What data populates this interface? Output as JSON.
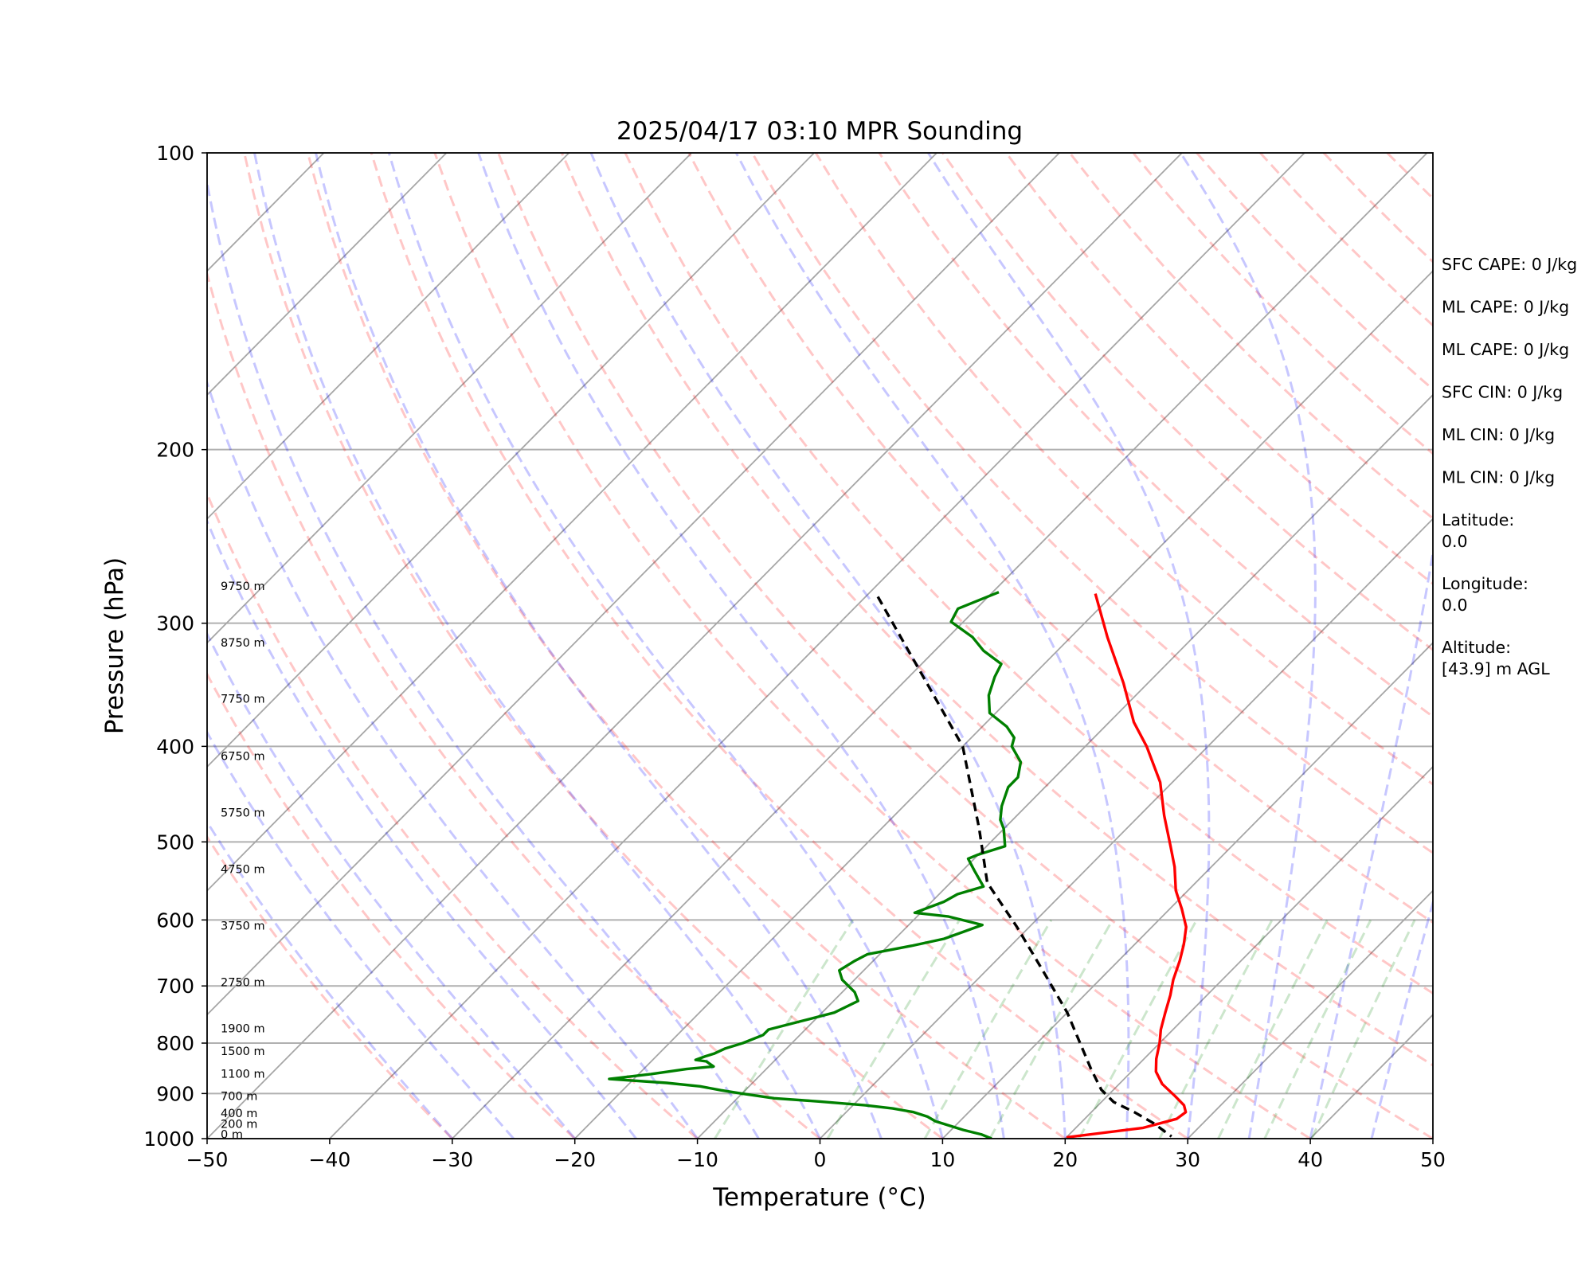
{
  "chart_data": {
    "type": "line",
    "title": "2025/04/17 03:10 MPR Sounding",
    "xlabel": "Temperature (°C)",
    "ylabel": "Pressure (hPa)",
    "xlim": [
      -50,
      50
    ],
    "ylim": [
      1000,
      100
    ],
    "y_scale": "log",
    "grid": true,
    "x_ticks": [
      "−50",
      "−40",
      "−30",
      "−20",
      "−10",
      "0",
      "10",
      "20",
      "30",
      "40",
      "50"
    ],
    "y_ticks": [
      {
        "value": 100,
        "label": "100"
      },
      {
        "value": 200,
        "label": "200"
      },
      {
        "value": 300,
        "label": "300"
      },
      {
        "value": 400,
        "label": "400"
      },
      {
        "value": 500,
        "label": "500"
      },
      {
        "value": 600,
        "label": "600"
      },
      {
        "value": 700,
        "label": "700"
      },
      {
        "value": 800,
        "label": "800"
      },
      {
        "value": 900,
        "label": "900"
      },
      {
        "value": 1000,
        "label": "1000"
      }
    ],
    "height_labels": [
      {
        "label": "9750 m",
        "p": 275
      },
      {
        "label": "8750 m",
        "p": 314
      },
      {
        "label": "7750 m",
        "p": 358
      },
      {
        "label": "6750 m",
        "p": 409
      },
      {
        "label": "5750 m",
        "p": 467
      },
      {
        "label": "4750 m",
        "p": 533
      },
      {
        "label": "3750 m",
        "p": 608
      },
      {
        "label": "2750 m",
        "p": 694
      },
      {
        "label": "1900 m",
        "p": 773
      },
      {
        "label": "1500 m",
        "p": 815
      },
      {
        "label": "1100 m",
        "p": 859
      },
      {
        "label": "700 m",
        "p": 905
      },
      {
        "label": "400 m",
        "p": 942
      },
      {
        "label": "200 m",
        "p": 966
      },
      {
        "label": "0 m",
        "p": 990
      }
    ],
    "series": [
      {
        "color": "#ff0000",
        "points": [
          [
            -21.5,
            280
          ],
          [
            -17,
            310
          ],
          [
            -12,
            345
          ],
          [
            -8,
            378
          ],
          [
            -5,
            400
          ],
          [
            -1,
            435
          ],
          [
            2,
            470
          ],
          [
            5,
            505
          ],
          [
            7,
            530
          ],
          [
            9,
            560
          ],
          [
            11,
            585
          ],
          [
            12.8,
            610
          ],
          [
            14,
            635
          ],
          [
            15,
            660
          ],
          [
            16,
            690
          ],
          [
            17,
            715
          ],
          [
            18,
            745
          ],
          [
            19,
            775
          ],
          [
            20,
            800
          ],
          [
            21,
            830
          ],
          [
            22,
            855
          ],
          [
            23.5,
            880
          ],
          [
            25.5,
            905
          ],
          [
            27,
            925
          ],
          [
            27.7,
            940
          ],
          [
            27.5,
            955
          ],
          [
            25.5,
            975
          ],
          [
            20,
            997
          ]
        ]
      },
      {
        "color": "#008000",
        "points": [
          [
            -29.5,
            279
          ],
          [
            -31.5,
            290
          ],
          [
            -31,
            299
          ],
          [
            -28,
            310
          ],
          [
            -26,
            320
          ],
          [
            -23.5,
            330
          ],
          [
            -23,
            340
          ],
          [
            -22,
            355
          ],
          [
            -20.5,
            370
          ],
          [
            -18,
            382
          ],
          [
            -16.5,
            392
          ],
          [
            -16,
            400
          ],
          [
            -14,
            415
          ],
          [
            -13,
            430
          ],
          [
            -13,
            440
          ],
          [
            -12,
            460
          ],
          [
            -11,
            475
          ],
          [
            -10,
            485
          ],
          [
            -8.5,
            505
          ],
          [
            -10,
            515
          ],
          [
            -10.5,
            520
          ],
          [
            -9,
            535
          ],
          [
            -7,
            555
          ],
          [
            -8.5,
            565
          ],
          [
            -9,
            575
          ],
          [
            -10.5,
            590
          ],
          [
            -7.5,
            595
          ],
          [
            -4,
            607
          ],
          [
            -5,
            617
          ],
          [
            -6,
            627
          ],
          [
            -8,
            637
          ],
          [
            -11,
            650
          ],
          [
            -11.5,
            660
          ],
          [
            -12,
            675
          ],
          [
            -11,
            690
          ],
          [
            -9,
            710
          ],
          [
            -8,
            725
          ],
          [
            -9,
            745
          ],
          [
            -11,
            760
          ],
          [
            -13,
            775
          ],
          [
            -13,
            785
          ],
          [
            -14,
            800
          ],
          [
            -15,
            810
          ],
          [
            -15.5,
            820
          ],
          [
            -16,
            825
          ],
          [
            -16.5,
            832
          ],
          [
            -15.5,
            835
          ],
          [
            -14.5,
            845
          ],
          [
            -16.5,
            850
          ],
          [
            -19,
            860
          ],
          [
            -22,
            870
          ],
          [
            -17,
            878
          ],
          [
            -14,
            885
          ],
          [
            -12,
            893
          ],
          [
            -10,
            900
          ],
          [
            -7,
            910
          ],
          [
            -3,
            917
          ],
          [
            1,
            925
          ],
          [
            3.5,
            932
          ],
          [
            5.5,
            940
          ],
          [
            7,
            950
          ],
          [
            8,
            960
          ],
          [
            9.5,
            970
          ],
          [
            11,
            980
          ],
          [
            12.8,
            990
          ],
          [
            14,
            1000
          ]
        ]
      },
      {
        "color": "#000000",
        "dashed": true,
        "points": [
          [
            -39,
            282
          ],
          [
            -20,
            400
          ],
          [
            -12,
            485
          ],
          [
            -7,
            550
          ],
          [
            -1,
            610
          ],
          [
            5,
            680
          ],
          [
            10,
            745
          ],
          [
            14,
            808
          ],
          [
            16.5,
            850
          ],
          [
            19,
            892
          ],
          [
            21,
            918
          ],
          [
            23.5,
            940
          ],
          [
            26,
            965
          ],
          [
            28.5,
            995
          ]
        ]
      }
    ],
    "info": [
      [
        "SFC CAPE: 0 J/kg"
      ],
      [
        "ML CAPE: 0 J/kg"
      ],
      [
        "ML CAPE: 0 J/kg"
      ],
      [
        "SFC CIN: 0 J/kg"
      ],
      [
        "ML CIN: 0 J/kg"
      ],
      [
        "ML CIN: 0 J/kg"
      ],
      [
        "Latitude:",
        "0.0"
      ],
      [
        "Longitude:",
        "0.0"
      ],
      [
        "Altitude:",
        "[43.9] m AGL"
      ]
    ]
  }
}
